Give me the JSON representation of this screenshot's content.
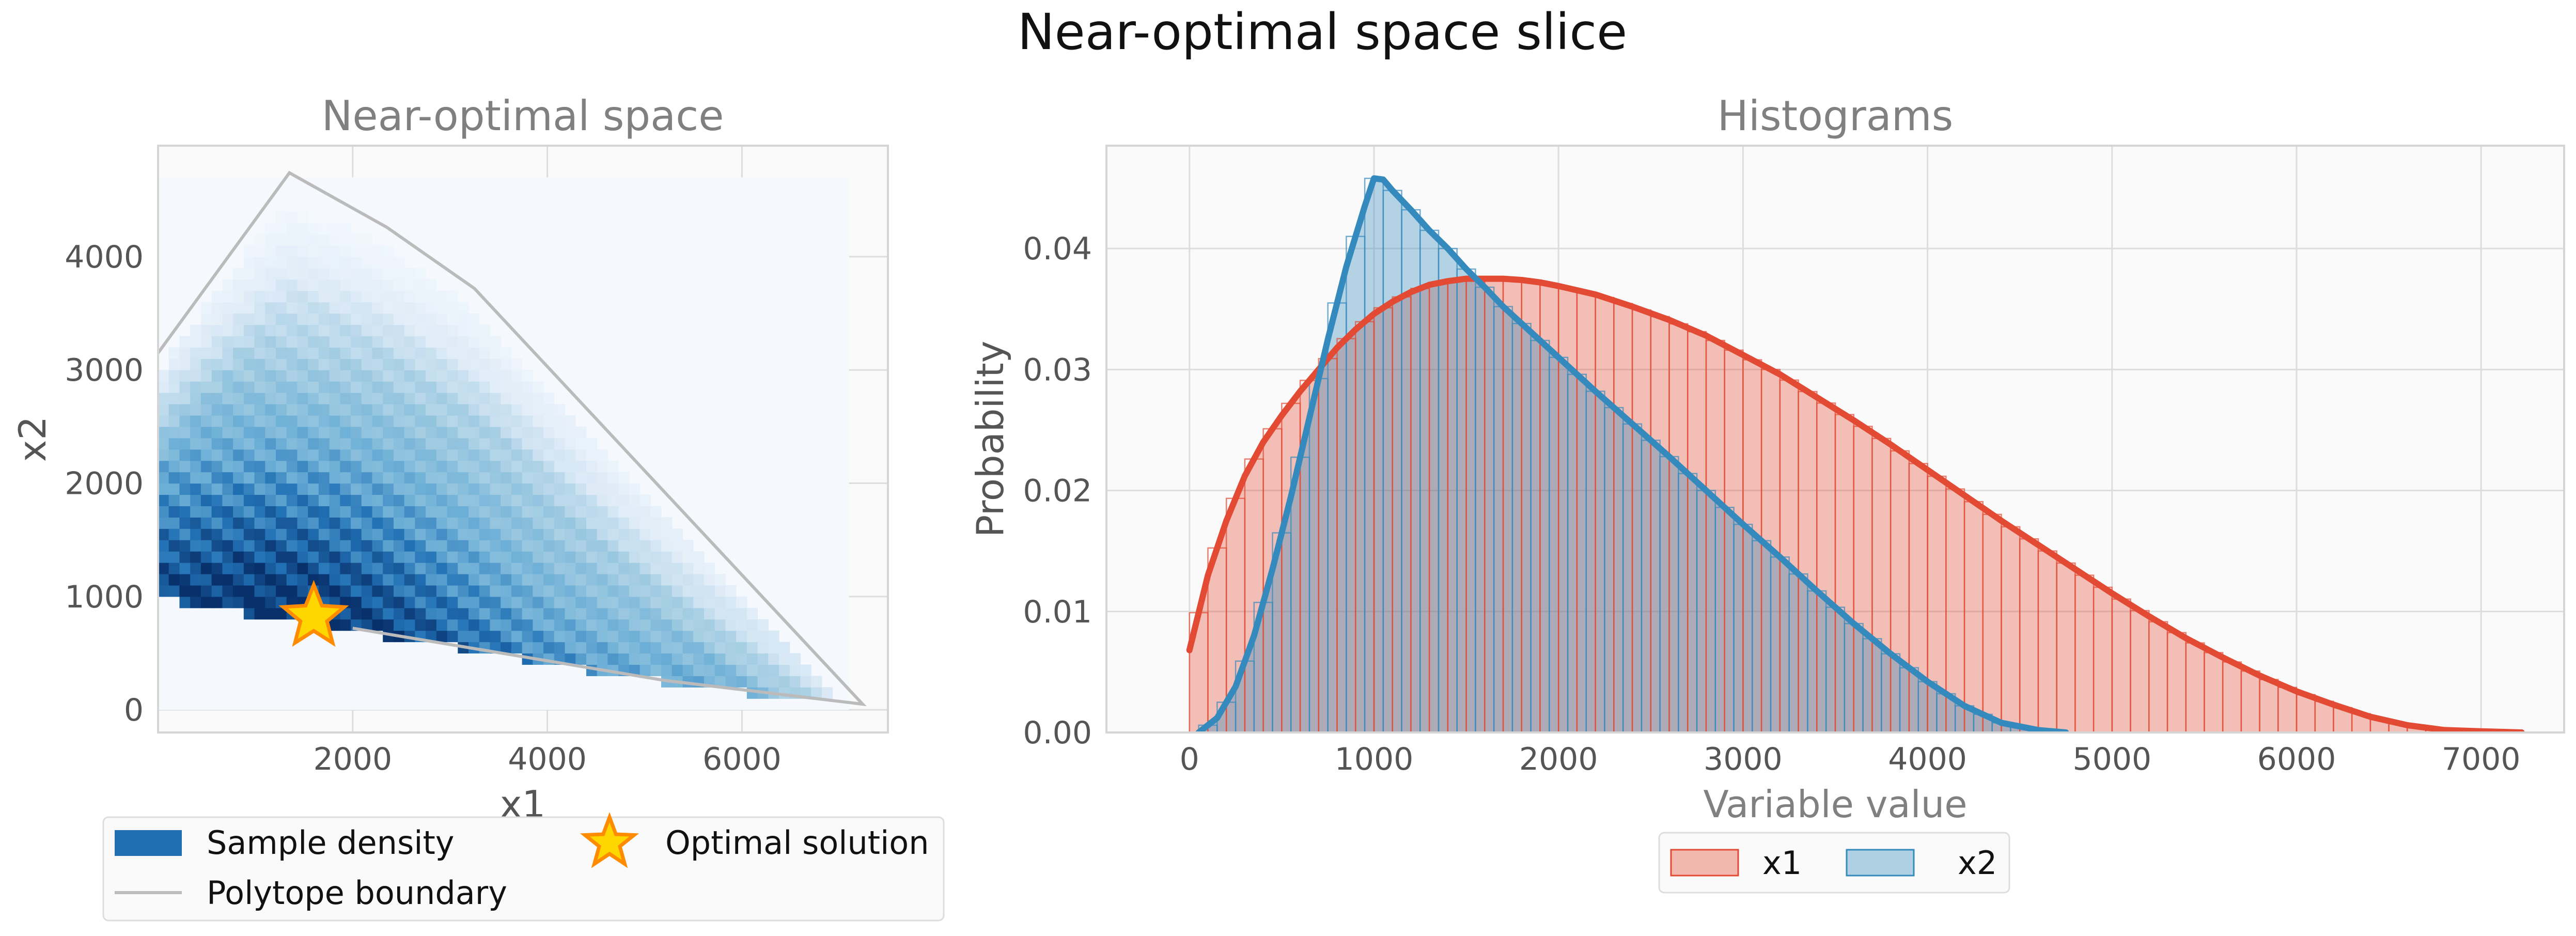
{
  "figure": {
    "suptitle": "Near-optimal space slice"
  },
  "colors": {
    "x1_line": "#E24A33",
    "x1_fill": "#F2B8AE",
    "x2_line": "#348ABD",
    "x2_fill": "#AFD0E3",
    "overlap_fill": "#B2ABB6",
    "boundary": "#BBBBBB",
    "star_fill": "#FFD700",
    "star_edge": "#FF8C00",
    "panel_bg": "#FAFAFA",
    "grid": "#DDDDDD",
    "text": "#555555",
    "title_text": "#808080"
  },
  "chart_data": [
    {
      "type": "heatmap",
      "title": "Near-optimal space",
      "xlabel": "x1",
      "ylabel": "x2",
      "xlim": [
        0,
        7500
      ],
      "ylim": [
        -200,
        4980
      ],
      "xticks": [
        2000,
        4000,
        6000
      ],
      "yticks": [
        0,
        1000,
        2000,
        3000,
        4000
      ],
      "grid": true,
      "colormap": "Blues",
      "density_peak": [
        1200,
        1000
      ],
      "polytope_boundary": [
        [
          0,
          3150
        ],
        [
          1350,
          4740
        ],
        [
          2350,
          4260
        ],
        [
          3250,
          3720
        ],
        [
          7240,
          50
        ],
        [
          5200,
          260
        ],
        [
          2000,
          720
        ],
        [
          0,
          1000
        ]
      ],
      "optimal_solution": [
        1600,
        820
      ],
      "legend": {
        "placement": "lower center, below axes",
        "entries": [
          {
            "label": "Sample density",
            "marker": "patch"
          },
          {
            "label": "Optimal solution",
            "marker": "star"
          },
          {
            "label": "Polytope boundary",
            "marker": "line"
          }
        ]
      }
    },
    {
      "type": "area",
      "title": "Histograms",
      "xlabel": "Variable value",
      "ylabel": "Probability",
      "xlim": [
        -450,
        7450
      ],
      "ylim": [
        0,
        0.0485
      ],
      "xticks": [
        0,
        1000,
        2000,
        3000,
        4000,
        5000,
        6000,
        7000
      ],
      "yticks": [
        0,
        0.01,
        0.02,
        0.03,
        0.04
      ],
      "ytick_labels": [
        "0.00",
        "0.01",
        "0.02",
        "0.03",
        "0.04"
      ],
      "grid": true,
      "legend": {
        "placement": "lower center, below axes"
      },
      "series": [
        {
          "name": "x1",
          "x": [
            0,
            100,
            200,
            300,
            400,
            500,
            600,
            700,
            800,
            900,
            1000,
            1100,
            1200,
            1300,
            1400,
            1500,
            1600,
            1700,
            1800,
            1900,
            2000,
            2200,
            2400,
            2600,
            2800,
            3000,
            3200,
            3400,
            3600,
            3800,
            4000,
            4200,
            4400,
            4600,
            4800,
            5000,
            5200,
            5400,
            5600,
            5800,
            6000,
            6200,
            6400,
            6600,
            6800,
            7000,
            7220
          ],
          "values": [
            0.0068,
            0.013,
            0.0175,
            0.0212,
            0.024,
            0.0262,
            0.0282,
            0.03,
            0.0318,
            0.0333,
            0.0346,
            0.0356,
            0.0364,
            0.037,
            0.0373,
            0.0375,
            0.0375,
            0.0375,
            0.0374,
            0.0372,
            0.0369,
            0.0362,
            0.0352,
            0.0341,
            0.0328,
            0.0312,
            0.0296,
            0.0277,
            0.0258,
            0.0238,
            0.0217,
            0.0196,
            0.0175,
            0.0155,
            0.0135,
            0.0115,
            0.0096,
            0.0078,
            0.0062,
            0.0047,
            0.0034,
            0.0023,
            0.0013,
            0.0006,
            0.0002,
            0.0001,
            0.0
          ]
        },
        {
          "name": "x2",
          "x": [
            50,
            150,
            250,
            350,
            450,
            550,
            650,
            750,
            850,
            950,
            1000,
            1050,
            1100,
            1200,
            1300,
            1400,
            1500,
            1600,
            1700,
            1800,
            2000,
            2200,
            2400,
            2600,
            2800,
            3000,
            3200,
            3400,
            3600,
            3800,
            4000,
            4200,
            4400,
            4600,
            4750
          ],
          "values": [
            0.0,
            0.0012,
            0.0038,
            0.008,
            0.0135,
            0.0195,
            0.026,
            0.0325,
            0.0385,
            0.0435,
            0.0458,
            0.0457,
            0.0448,
            0.0432,
            0.0415,
            0.04,
            0.0383,
            0.0368,
            0.0352,
            0.0338,
            0.031,
            0.0282,
            0.0255,
            0.0228,
            0.02,
            0.0172,
            0.0145,
            0.0117,
            0.009,
            0.0065,
            0.0042,
            0.0022,
            0.0008,
            0.0002,
            0.0
          ]
        }
      ]
    }
  ]
}
